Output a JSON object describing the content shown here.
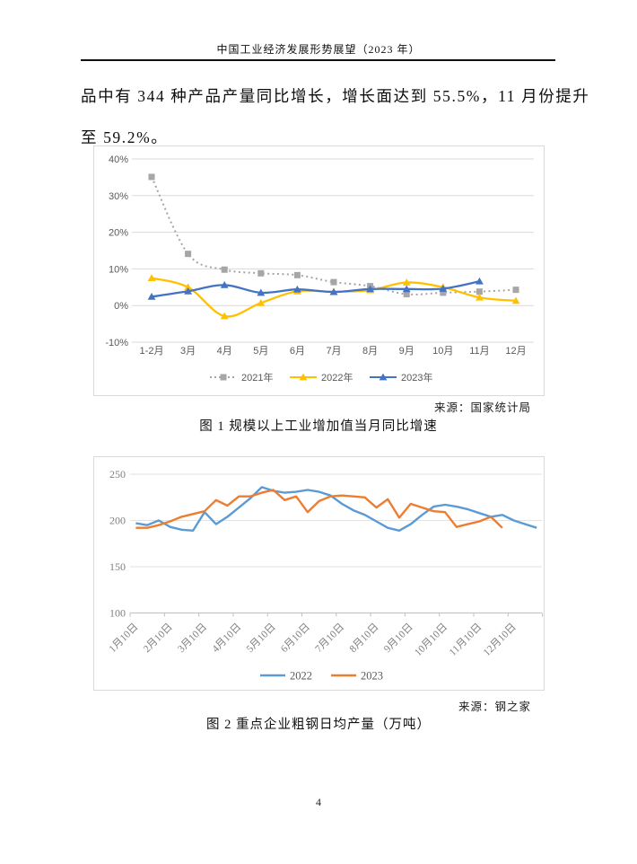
{
  "page": {
    "header_title": "中国工业经济发展形势展望（2023 年）",
    "paragraph_line1": "品中有 344 种产品产量同比增长，增长面达到 55.5%，11 月份提升",
    "paragraph_line2": "至 59.2%。",
    "page_number": "4"
  },
  "figure1": {
    "source": "来源：国家统计局",
    "caption": "图 1 规模以上工业增加值当月同比增速"
  },
  "figure2": {
    "source": "来源：钢之家",
    "caption": "图 2 重点企业粗钢日均产量（万吨）"
  },
  "chart_data": [
    {
      "type": "line",
      "title": "规模以上工业增加值当月同比增速",
      "categories": [
        "1-2月",
        "3月",
        "4月",
        "5月",
        "6月",
        "7月",
        "8月",
        "9月",
        "10月",
        "11月",
        "12月"
      ],
      "series": [
        {
          "name": "2021年",
          "color": "#a6a6a6",
          "line_style": "dotted",
          "marker": "square",
          "smooth": true,
          "values": [
            35.1,
            14.1,
            9.8,
            8.8,
            8.3,
            6.4,
            5.3,
            3.1,
            3.5,
            3.8,
            4.3
          ]
        },
        {
          "name": "2022年",
          "color": "#ffc000",
          "line_style": "solid",
          "marker": "triangle",
          "smooth": true,
          "values": [
            7.5,
            5.0,
            -2.9,
            0.7,
            3.9,
            3.8,
            4.2,
            6.3,
            5.0,
            2.2,
            1.3
          ]
        },
        {
          "name": "2023年",
          "color": "#4472c4",
          "line_style": "solid",
          "marker": "triangle",
          "smooth": true,
          "values": [
            2.4,
            3.9,
            5.6,
            3.5,
            4.4,
            3.7,
            4.5,
            4.5,
            4.6,
            6.6
          ]
        }
      ],
      "y_ticks": [
        {
          "value": 40,
          "label": "40%"
        },
        {
          "value": 30,
          "label": "30%"
        },
        {
          "value": 20,
          "label": "20%"
        },
        {
          "value": 10,
          "label": "10%"
        },
        {
          "value": 0,
          "label": "0%"
        },
        {
          "value": -10,
          "label": "-10%"
        }
      ],
      "ylim": [
        -10,
        40
      ],
      "grid": true,
      "legend_position": "bottom"
    },
    {
      "type": "line",
      "title": "重点企业粗钢日均产量（万吨）",
      "x_tick_labels": [
        "1月10日",
        "2月10日",
        "3月10日",
        "4月10日",
        "5月10日",
        "6月10日",
        "7月10日",
        "8月10日",
        "9月10日",
        "10月10日",
        "11月10日",
        "12月10日"
      ],
      "points_per_month": 3,
      "series": [
        {
          "name": "2022",
          "color": "#5b9bd5",
          "line_style": "solid",
          "marker": "none",
          "smooth": false,
          "values": [
            197,
            195,
            200,
            193,
            190,
            189,
            209,
            196,
            204,
            214,
            224,
            236,
            232,
            230,
            231,
            233,
            231,
            227,
            218,
            211,
            206,
            199,
            192,
            189,
            196,
            206,
            215,
            217,
            215,
            212,
            208,
            204,
            206,
            200,
            196,
            192
          ]
        },
        {
          "name": "2023",
          "color": "#ed7d31",
          "line_style": "solid",
          "marker": "none",
          "smooth": false,
          "values": [
            192,
            192,
            195,
            199,
            204,
            207,
            210,
            222,
            216,
            226,
            226,
            230,
            233,
            222,
            226,
            209,
            221,
            226,
            227,
            226,
            225,
            214,
            223,
            203,
            218,
            214,
            210,
            209,
            193,
            196,
            199,
            204,
            192
          ]
        }
      ],
      "y_ticks": [
        {
          "value": 250,
          "label": "250"
        },
        {
          "value": 200,
          "label": "200"
        },
        {
          "value": 150,
          "label": "150"
        },
        {
          "value": 100,
          "label": "100"
        }
      ],
      "ylim": [
        100,
        250
      ],
      "grid": true,
      "legend_position": "bottom"
    }
  ]
}
